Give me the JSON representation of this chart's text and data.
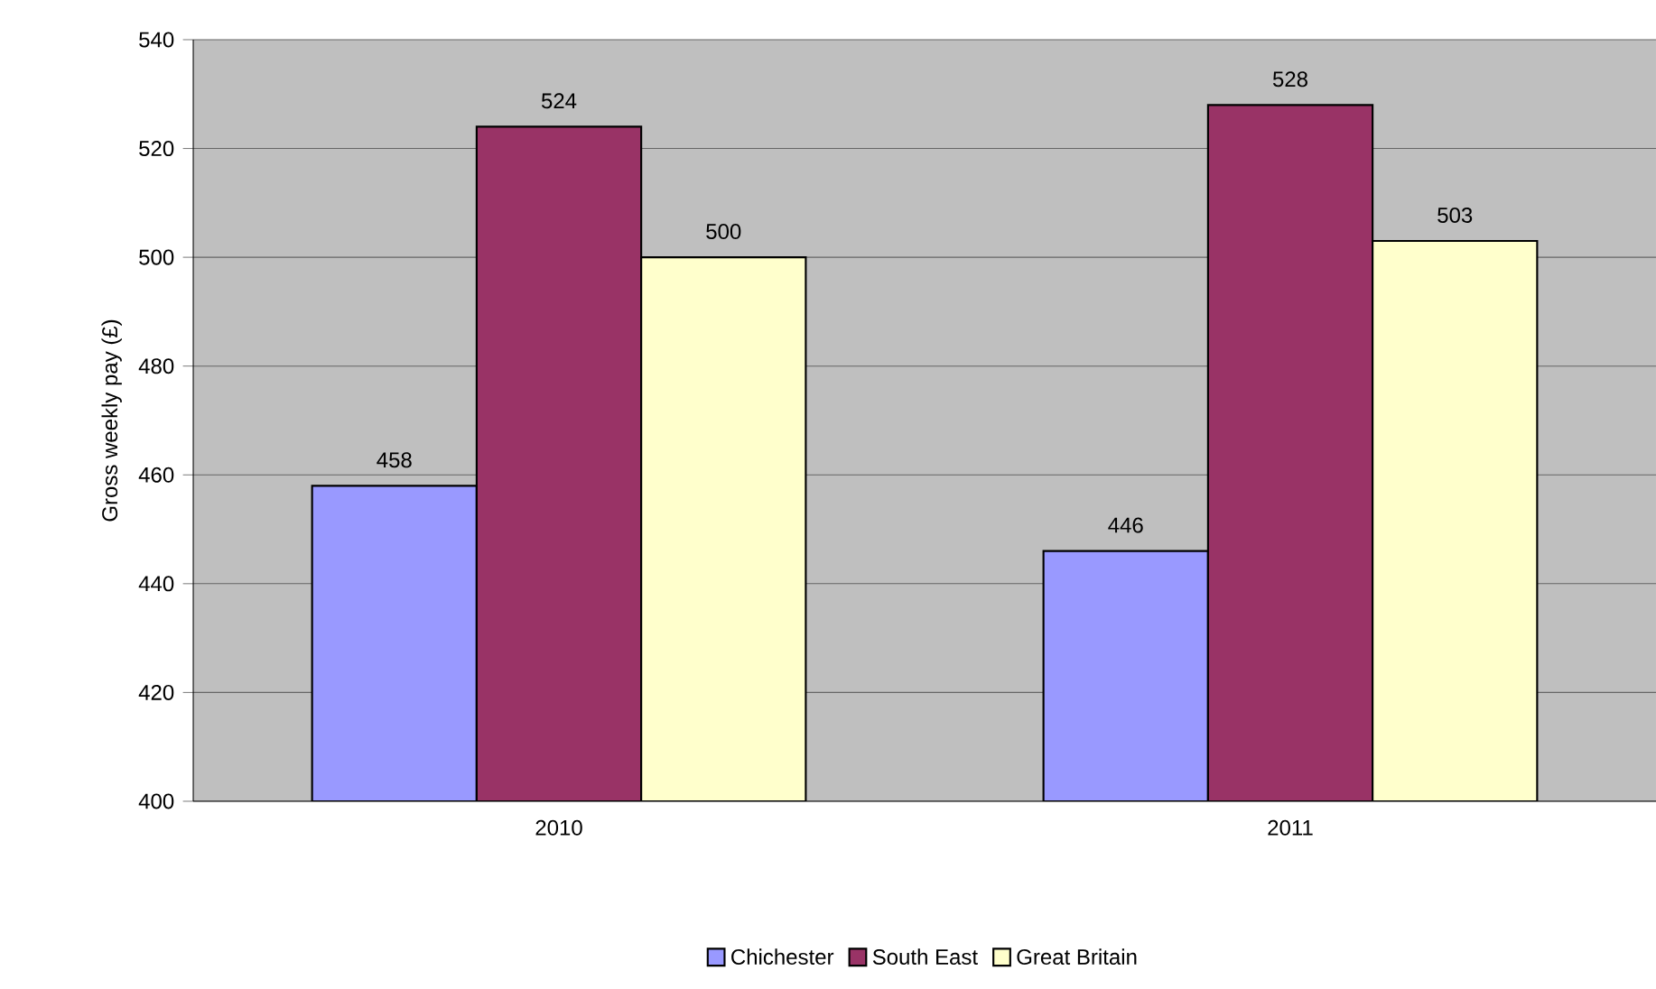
{
  "chart_data": {
    "type": "bar",
    "ylabel": "Gross weekly pay (£)",
    "categories": [
      "2010",
      "2011"
    ],
    "series": [
      {
        "name": "Chichester",
        "color": "#9999ff",
        "values": [
          458,
          446
        ]
      },
      {
        "name": "South East",
        "color": "#993366",
        "values": [
          524,
          528
        ]
      },
      {
        "name": "Great Britain",
        "color": "#ffffcc",
        "values": [
          500,
          503
        ]
      }
    ],
    "ylim": [
      400,
      540
    ],
    "yticks": [
      400,
      420,
      440,
      460,
      480,
      500,
      520,
      540
    ],
    "grid": "y",
    "legend": "bottom",
    "data_labels": true
  }
}
